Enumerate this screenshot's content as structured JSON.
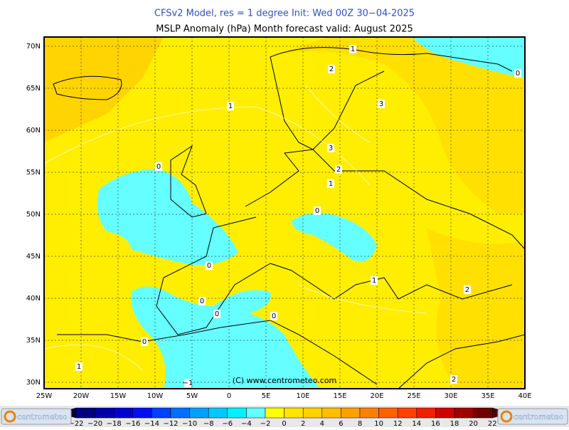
{
  "header": {
    "title": "CFSv2 Model, res = 1 degree    Init: Wed 00Z 30-04-2025",
    "subtitle": "MSLP Anomaly (hPa)     Month forecast valid: August 2025"
  },
  "map": {
    "lat_labels": [
      "70N",
      "65N",
      "60N",
      "55N",
      "50N",
      "45N",
      "40N",
      "35N",
      "30N"
    ],
    "lon_labels": [
      "25W",
      "20W",
      "15W",
      "10W",
      "5W",
      "0",
      "5E",
      "10E",
      "15E",
      "20E",
      "25E",
      "30E",
      "35E",
      "40E"
    ],
    "contour_labels": [
      "1",
      "2",
      "0",
      "1",
      "3",
      "3",
      "2",
      "1",
      "0",
      "0",
      "0",
      "1",
      "2",
      "0",
      "0",
      "0",
      "0",
      "1",
      "2",
      "-1"
    ],
    "copyright": "(C) www.centrometeo.com"
  },
  "colorbar": {
    "ticks": [
      -22,
      -20,
      -18,
      -16,
      -14,
      -12,
      -10,
      -8,
      -6,
      -4,
      -2,
      0,
      2,
      4,
      6,
      8,
      10,
      12,
      14,
      16,
      18,
      20,
      22
    ],
    "colors": [
      "#000040",
      "#000080",
      "#0000a8",
      "#0000d0",
      "#0010f0",
      "#0040ff",
      "#0070ff",
      "#00a0ff",
      "#00c8ff",
      "#00f0ff",
      "#60ffff",
      "#ffff00",
      "#ffe400",
      "#ffd200",
      "#ffbe00",
      "#ffa000",
      "#ff8000",
      "#ff6000",
      "#ff4000",
      "#f02000",
      "#d00000",
      "#a00000",
      "#700000",
      "#500000"
    ],
    "logo": "centrometeo"
  }
}
